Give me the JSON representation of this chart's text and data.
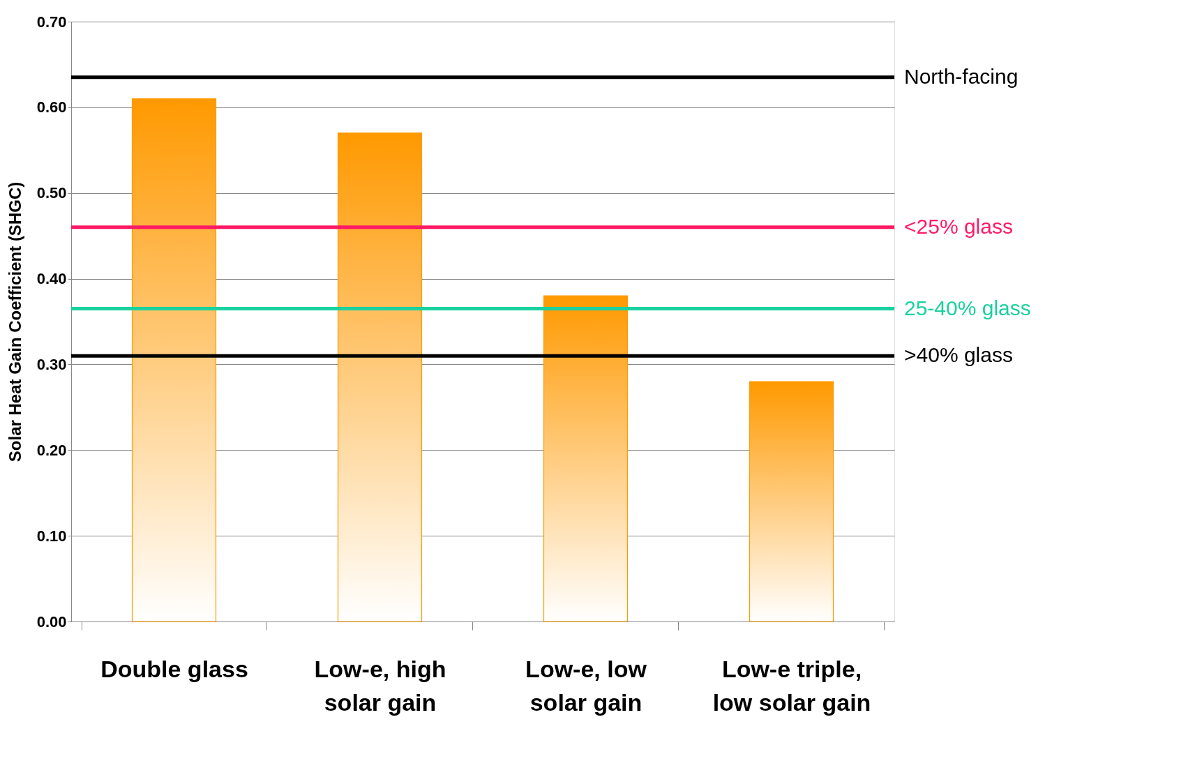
{
  "chart_data": {
    "type": "bar",
    "ylabel": "Solar Heat Gain Coefficient (SHGC)",
    "categories": [
      "Double glass",
      "Low-e, high solar gain",
      "Low-e, low solar gain",
      "Low-e triple, low solar gain"
    ],
    "values": [
      0.61,
      0.57,
      0.38,
      0.28
    ],
    "color": "#ff9900",
    "ylim": [
      0,
      0.7
    ],
    "yticks": [
      {
        "value": 0,
        "label": "0.00"
      },
      {
        "value": 0.1,
        "label": "0.10"
      },
      {
        "value": 0.2,
        "label": "0.20"
      },
      {
        "value": 0.3,
        "label": "0.30"
      },
      {
        "value": 0.4,
        "label": "0.40"
      },
      {
        "value": 0.5,
        "label": "0.50"
      },
      {
        "value": 0.6,
        "label": "0.60"
      },
      {
        "value": 0.7,
        "label": "0.70"
      }
    ],
    "grid": "y",
    "ref_lines": [
      {
        "axis": "y",
        "value": 0.635,
        "label": "North-facing",
        "color": "#000000"
      },
      {
        "axis": "y",
        "value": 0.46,
        "label": "<25% glass",
        "color": "#ff1a66"
      },
      {
        "axis": "y",
        "value": 0.365,
        "label": "25-40% glass",
        "color": "#1ad19f"
      },
      {
        "axis": "y",
        "value": 0.31,
        "label": ">40% glass",
        "color": "#000000"
      }
    ]
  }
}
